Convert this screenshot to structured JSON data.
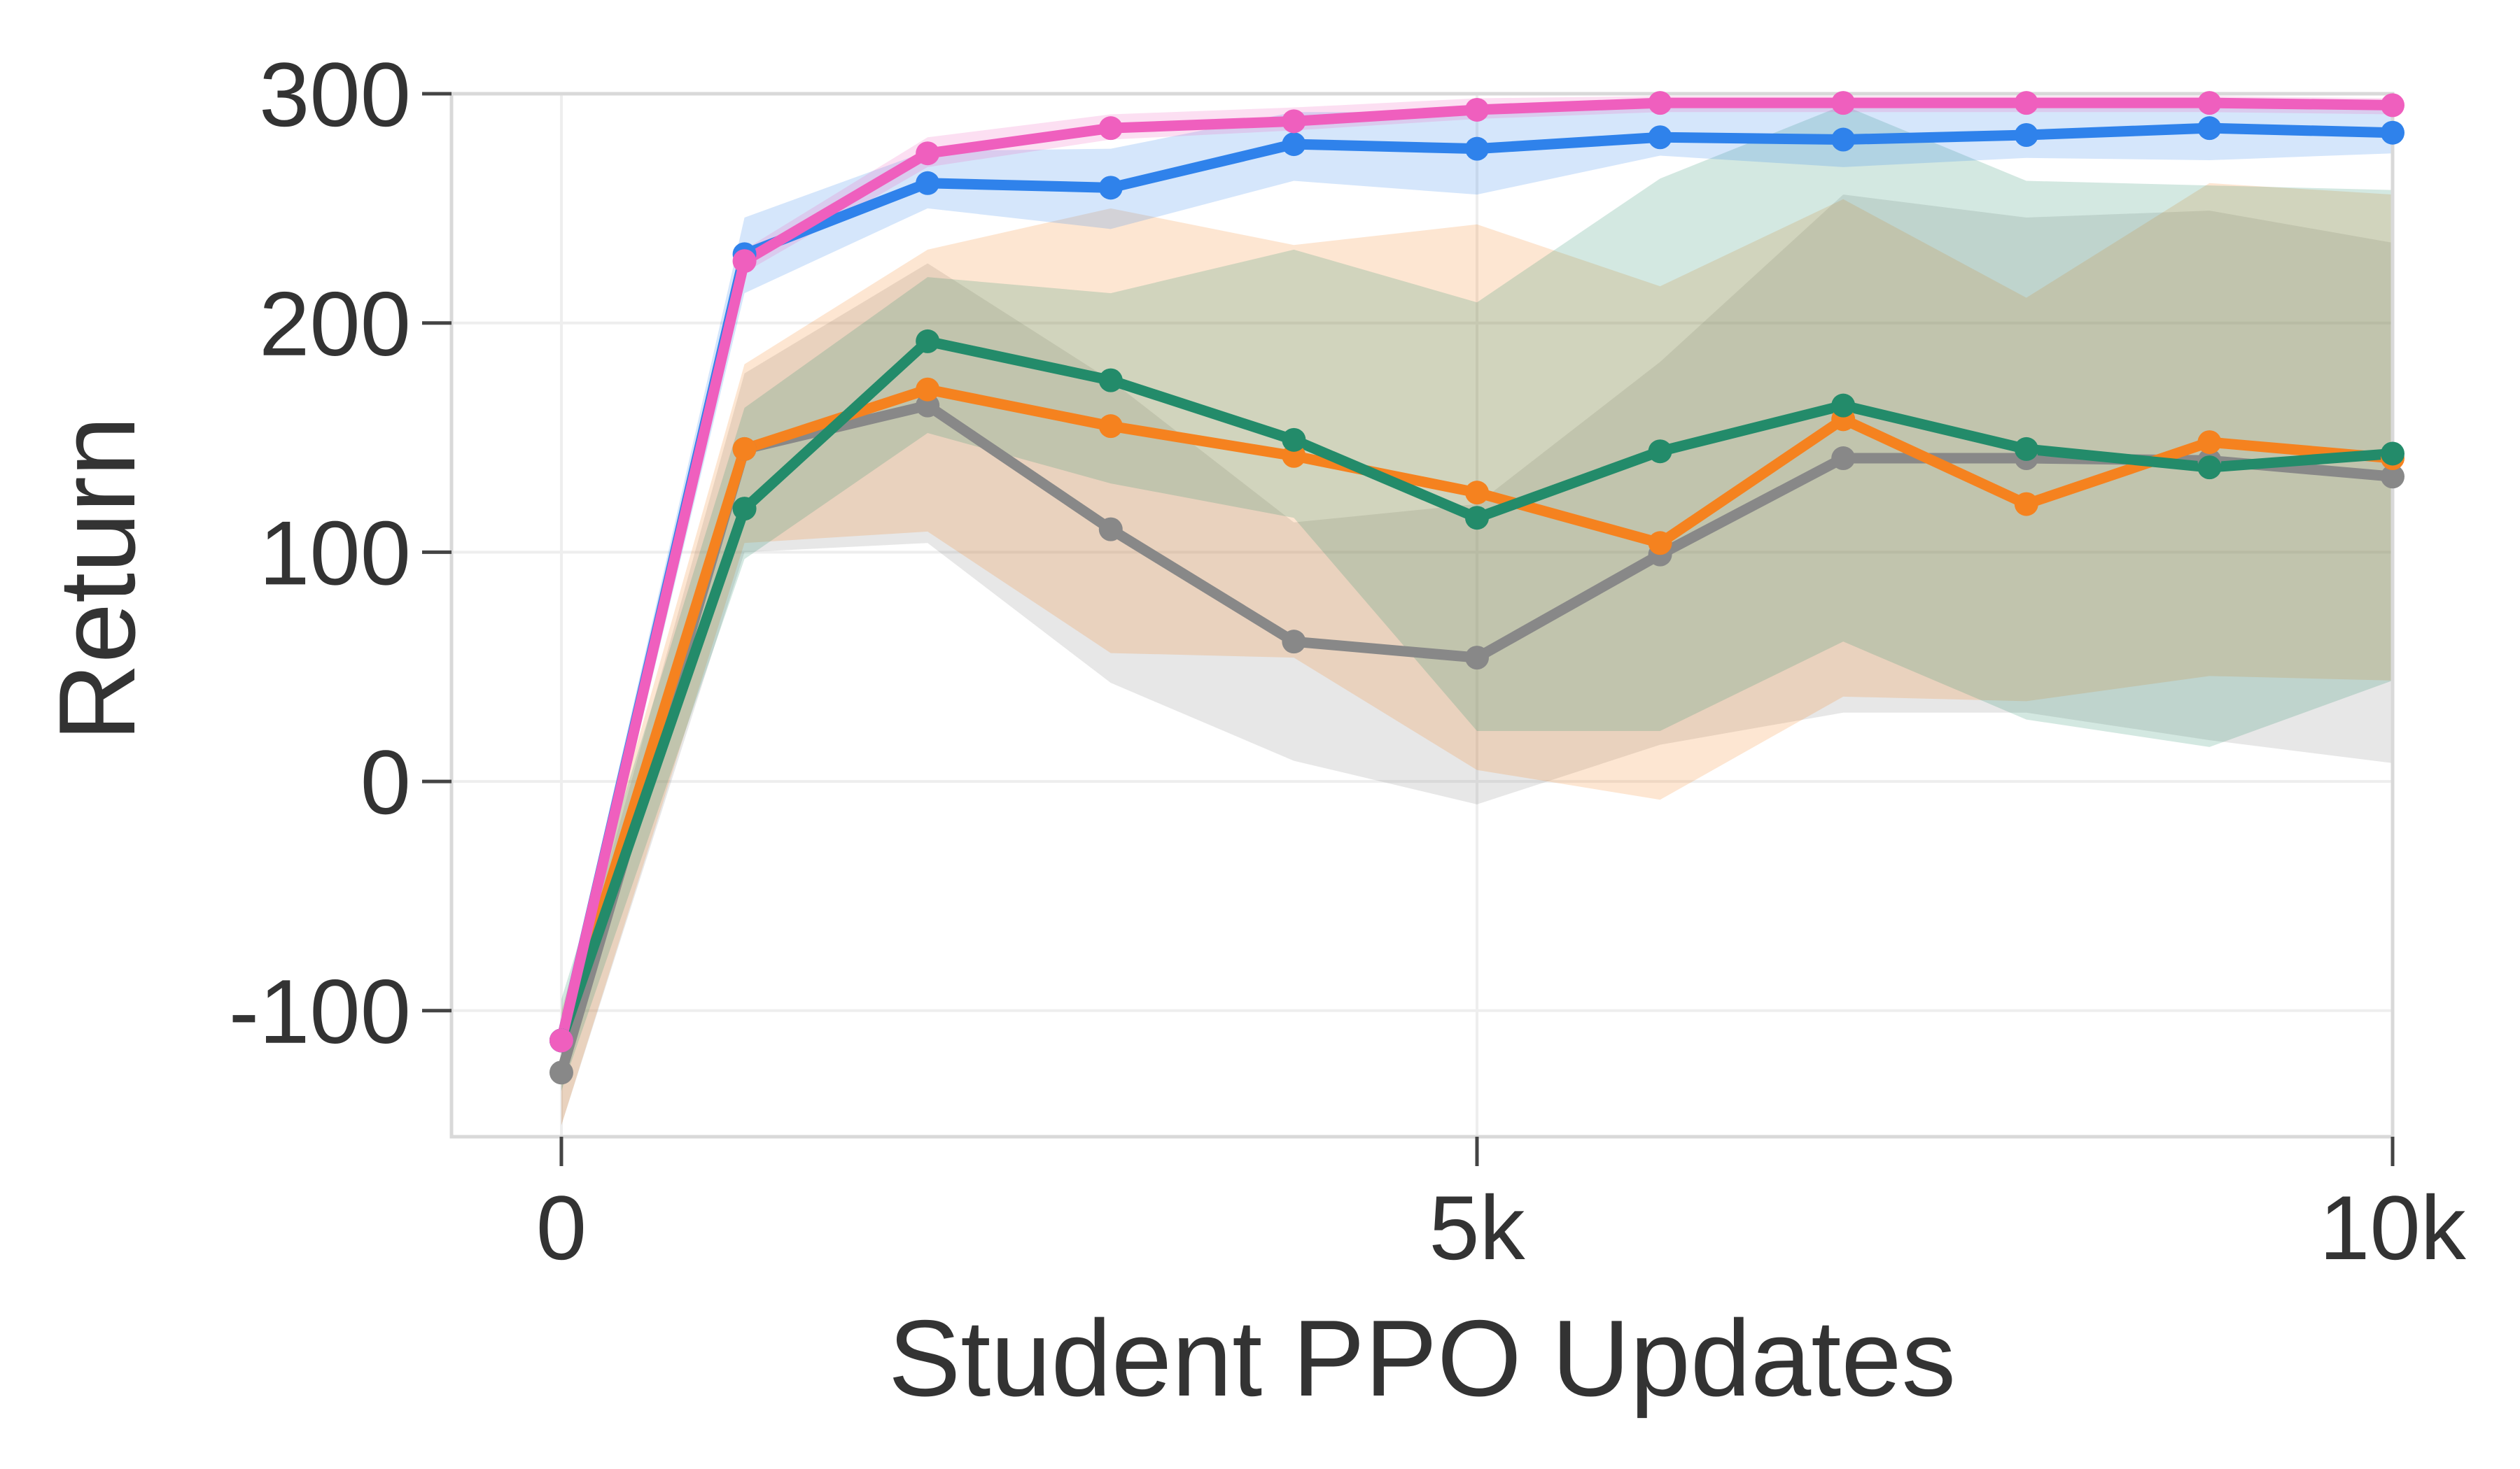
{
  "chart_data": {
    "type": "line",
    "xlabel": "Student PPO Updates",
    "ylabel": "Return",
    "xlim": [
      -600,
      10000
    ],
    "ylim": [
      -155,
      300
    ],
    "xticks": [
      0,
      5000,
      10000
    ],
    "xtick_labels": [
      "0",
      "5k",
      "10k"
    ],
    "yticks": [
      -100,
      0,
      100,
      200,
      300
    ],
    "ytick_labels": [
      "-100",
      "0",
      "100",
      "200",
      "300"
    ],
    "grid": true,
    "legend": "none",
    "x": [
      0,
      1000,
      2000,
      3000,
      4000,
      5000,
      6000,
      7000,
      8000,
      9000,
      10000
    ],
    "series": [
      {
        "color": "#888888",
        "values": [
          -127,
          145,
          164,
          110,
          61,
          54,
          99,
          141,
          141,
          140,
          133
        ],
        "lower": [
          -150,
          100,
          104,
          43,
          9,
          -10,
          16,
          30,
          30,
          18,
          8
        ],
        "upper": [
          -110,
          178,
          226,
          175,
          113,
          121,
          183,
          256,
          246,
          249,
          235
        ]
      },
      {
        "color": "#F5821F",
        "values": [
          -113,
          145,
          171,
          155,
          142,
          126,
          104,
          158,
          121,
          148,
          141
        ],
        "lower": [
          -150,
          104,
          109,
          56,
          54,
          5,
          -8,
          37,
          35,
          46,
          44
        ],
        "upper": [
          -100,
          182,
          232,
          250,
          234,
          243,
          216,
          254,
          211,
          261,
          256
        ]
      },
      {
        "color": "#238B6A",
        "values": [
          -113,
          119,
          192,
          175,
          149,
          115,
          144,
          164,
          145,
          137,
          143
        ],
        "lower": [
          -135,
          97,
          152,
          130,
          115,
          22,
          22,
          61,
          27,
          15,
          44
        ],
        "upper": [
          -95,
          163,
          220,
          213,
          232,
          209,
          263,
          295,
          262,
          260,
          258
        ]
      },
      {
        "color": "#2F82EB",
        "values": [
          -113,
          230,
          261,
          259,
          278,
          276,
          281,
          280,
          282,
          285,
          283
        ],
        "lower": [
          -120,
          213,
          250,
          241,
          262,
          256,
          273,
          268,
          272,
          271,
          274
        ],
        "upper": [
          -104,
          246,
          275,
          276,
          292,
          292,
          295,
          294,
          295,
          297,
          297
        ]
      },
      {
        "color": "#EF5FBE",
        "values": [
          -113,
          227,
          274,
          285,
          288,
          293,
          296,
          296,
          296,
          296,
          295
        ],
        "lower": [
          -119,
          222,
          268,
          280,
          284,
          289,
          292,
          292,
          292,
          292,
          291
        ],
        "upper": [
          -107,
          232,
          281,
          291,
          294,
          298,
          299,
          299,
          299,
          299,
          298
        ]
      }
    ]
  }
}
